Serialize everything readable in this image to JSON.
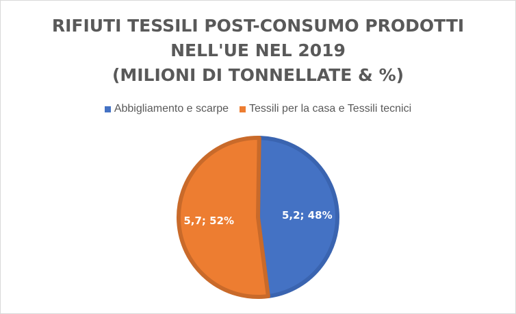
{
  "title_lines": [
    "RIFIUTI TESSILI POST-CONSUMO PRODOTTI",
    "NELL'UE NEL 2019",
    "(MILIONI DI TONNELLATE & %)"
  ],
  "legend": [
    {
      "label": "Abbigliamento e scarpe",
      "color": "#4472c4"
    },
    {
      "label": "Tessili per la casa e Tessili tecnici",
      "color": "#ed7d31"
    }
  ],
  "chart_data": {
    "type": "pie",
    "title": "RIFIUTI TESSILI POST-CONSUMO PRODOTTI NELL'UE NEL 2019 (MILIONI DI TONNELLATE & %)",
    "legend_position": "top",
    "slices": [
      {
        "label": "Abbigliamento e scarpe",
        "value": 5.2,
        "percent": 48,
        "color": "#4472c4",
        "border": "#3a64b0",
        "data_label": "5,2; 48%"
      },
      {
        "label": "Tessili per la casa e Tessili tecnici",
        "value": 5.7,
        "percent": 52,
        "color": "#ed7d31",
        "border": "#c96a2a",
        "data_label": "5,7; 52%"
      }
    ]
  }
}
